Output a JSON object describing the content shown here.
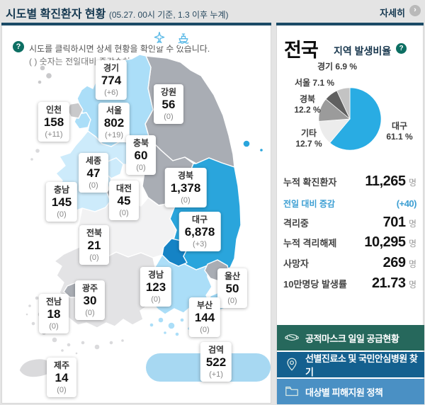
{
  "header": {
    "title": "시도별 확진환자 현황",
    "subtitle": "(05.27. 00시 기준, 1.3 이후 누계)",
    "more_label": "자세히",
    "more_arrow": "›"
  },
  "map_panel": {
    "help_icon": "?",
    "help_line1": "시도를 클릭하시면 상세 현황을 확인할 수 있습니다.",
    "help_line2": "( ) 숫자는 전일대비 증감수치",
    "regions": [
      {
        "name": "경기",
        "value": "774",
        "change": "(+6)"
      },
      {
        "name": "강원",
        "value": "56",
        "change": "(0)"
      },
      {
        "name": "인천",
        "value": "158",
        "change": "(+11)"
      },
      {
        "name": "서울",
        "value": "802",
        "change": "(+19)"
      },
      {
        "name": "충북",
        "value": "60",
        "change": "(0)"
      },
      {
        "name": "세종",
        "value": "47",
        "change": "(0)"
      },
      {
        "name": "대전",
        "value": "45",
        "change": "(0)"
      },
      {
        "name": "충남",
        "value": "145",
        "change": "(0)"
      },
      {
        "name": "경북",
        "value": "1,378",
        "change": "(0)"
      },
      {
        "name": "대구",
        "value": "6,878",
        "change": "(+3)"
      },
      {
        "name": "전북",
        "value": "21",
        "change": "(0)"
      },
      {
        "name": "광주",
        "value": "30",
        "change": "(0)"
      },
      {
        "name": "전남",
        "value": "18",
        "change": "(0)"
      },
      {
        "name": "경남",
        "value": "123",
        "change": "(0)"
      },
      {
        "name": "울산",
        "value": "50",
        "change": "(0)"
      },
      {
        "name": "부산",
        "value": "144",
        "change": "(0)"
      },
      {
        "name": "제주",
        "value": "14",
        "change": "(0)"
      },
      {
        "name": "검역",
        "value": "522",
        "change": "(+1)"
      }
    ],
    "map_colors": {
      "gray": "#a9adb4",
      "light_blue": "#abdef8",
      "very_light_blue": "#cdebfb",
      "medium_blue": "#2aa5dc",
      "dark_blue": "#1583c5",
      "near_white": "#f2f2f3",
      "light_gray": "#e3e3e5"
    }
  },
  "national_panel": {
    "title": "전국",
    "pie_title": "지역 발생비율",
    "pie_help_icon": "?",
    "stats": [
      {
        "label": "누적 확진환자",
        "value": "11,265",
        "unit": "명"
      },
      {
        "label": "전일 대비 증감",
        "value": "(+40)",
        "unit": ""
      },
      {
        "label": "격리중",
        "value": "701",
        "unit": "명"
      },
      {
        "label": "누적 격리해제",
        "value": "10,295",
        "unit": "명"
      },
      {
        "label": "사망자",
        "value": "269",
        "unit": "명"
      },
      {
        "label": "10만명당 발생률",
        "value": "21.73",
        "unit": "명"
      }
    ],
    "buttons": [
      {
        "label": "공적마스크 일일 공급현황",
        "icon": "mask-icon",
        "color": "#26685c"
      },
      {
        "label": "선별진료소 및 국민안심병원 찾기",
        "icon": "pin-icon",
        "color": "#14608f"
      },
      {
        "label": "대상별 피해지원 정책",
        "icon": "folder-icon",
        "color": "#4a90c4"
      }
    ]
  },
  "chart_data": {
    "type": "pie",
    "title": "지역 발생비율",
    "labels": [
      "대구",
      "기타",
      "경북",
      "서울",
      "경기"
    ],
    "values": [
      61.1,
      12.7,
      12.2,
      7.1,
      6.9
    ],
    "unit": "%",
    "colors": [
      "#29ace3",
      "#ececec",
      "#9b9b9b",
      "#606060",
      "#c3c3c3"
    ],
    "start": "12-oclock-clockwise",
    "legend_position": "around-slices",
    "label_texts": [
      "대구\n61.1 %",
      "기타\n12.7 %",
      "경북\n12.2 %",
      "서울 7.1 %",
      "경기 6.9 %"
    ]
  }
}
